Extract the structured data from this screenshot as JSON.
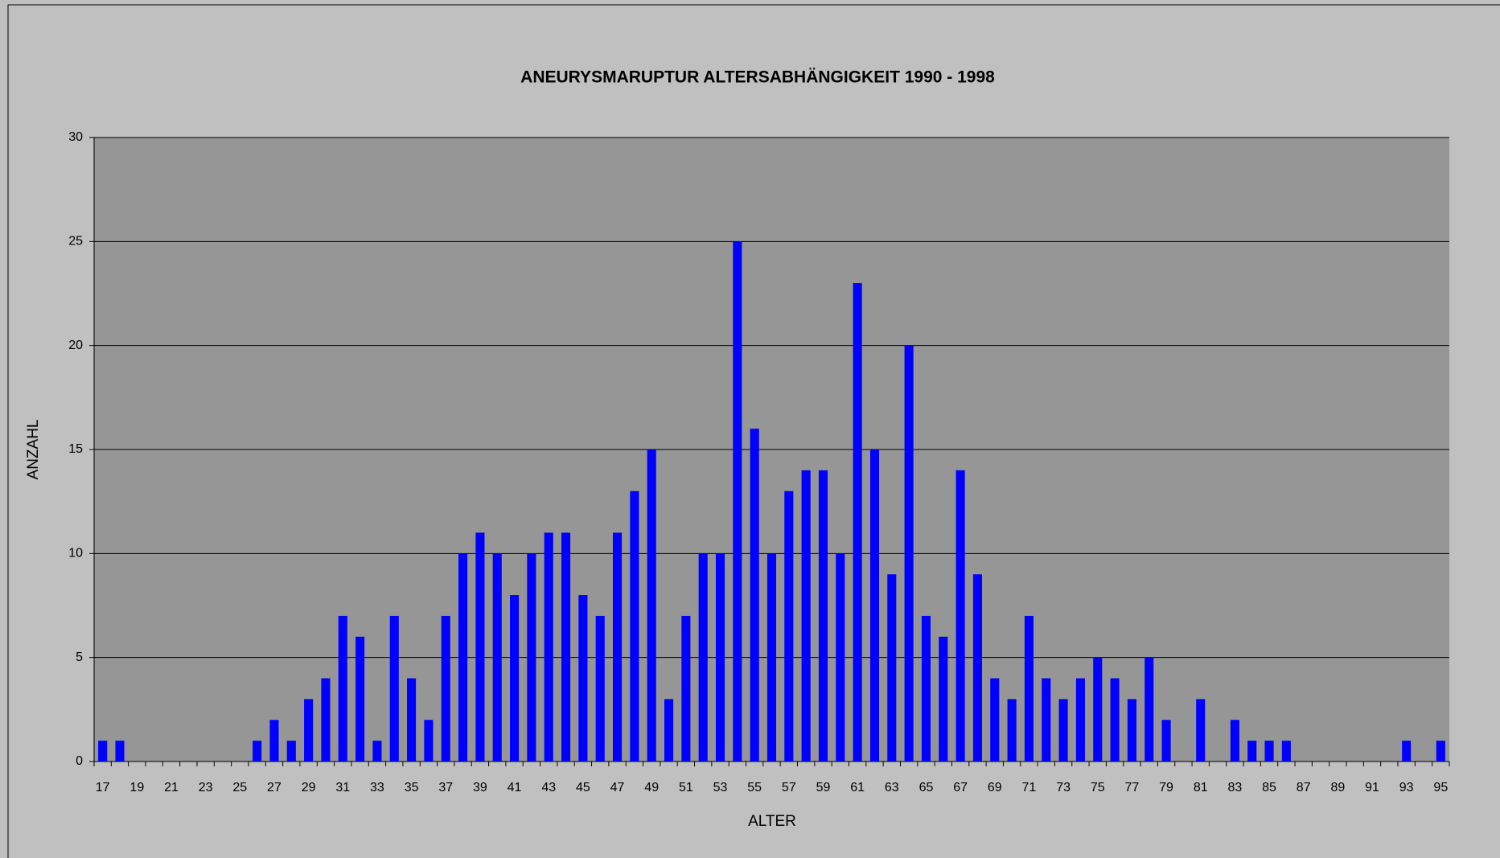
{
  "chart_data": {
    "type": "bar",
    "title": "ANEURYSMARUPTUR   ALTERSABHÄNGIGKEIT   1990 - 1998",
    "xlabel": "ALTER",
    "ylabel": "ANZAHL",
    "categories": [
      "17",
      null,
      "19",
      null,
      "21",
      null,
      "23",
      null,
      "25",
      null,
      "27",
      null,
      "29",
      null,
      "31",
      null,
      "33",
      null,
      "35",
      null,
      "37",
      null,
      "39",
      null,
      "41",
      null,
      "43",
      null,
      "45",
      null,
      "47",
      null,
      "49",
      null,
      "51",
      null,
      "53",
      null,
      "55",
      null,
      "57",
      null,
      "59",
      null,
      "61",
      null,
      "63",
      null,
      "65",
      null,
      "67",
      null,
      "69",
      null,
      "71",
      null,
      "73",
      null,
      "75",
      null,
      "77",
      null,
      "79",
      null,
      "81",
      null,
      "83",
      null,
      "85",
      null,
      "87",
      null,
      "89",
      null,
      "91",
      null,
      "93",
      null,
      "95"
    ],
    "values": [
      1,
      1,
      0,
      0,
      0,
      0,
      0,
      0,
      0,
      1,
      2,
      1,
      3,
      4,
      7,
      6,
      1,
      7,
      4,
      2,
      7,
      10,
      11,
      10,
      8,
      10,
      11,
      11,
      8,
      7,
      11,
      13,
      15,
      3,
      7,
      10,
      10,
      25,
      16,
      10,
      13,
      14,
      14,
      10,
      23,
      15,
      9,
      20,
      7,
      6,
      14,
      9,
      4,
      3,
      7,
      4,
      3,
      4,
      5,
      4,
      3,
      5,
      2,
      0,
      3,
      0,
      2,
      1,
      1,
      1,
      0,
      0,
      0,
      0,
      0,
      0,
      1,
      0,
      1
    ],
    "color": "#0000ff",
    "ylim": [
      0,
      30
    ],
    "yticks": [
      0,
      5,
      10,
      15,
      20,
      25,
      30
    ],
    "grid": true
  }
}
